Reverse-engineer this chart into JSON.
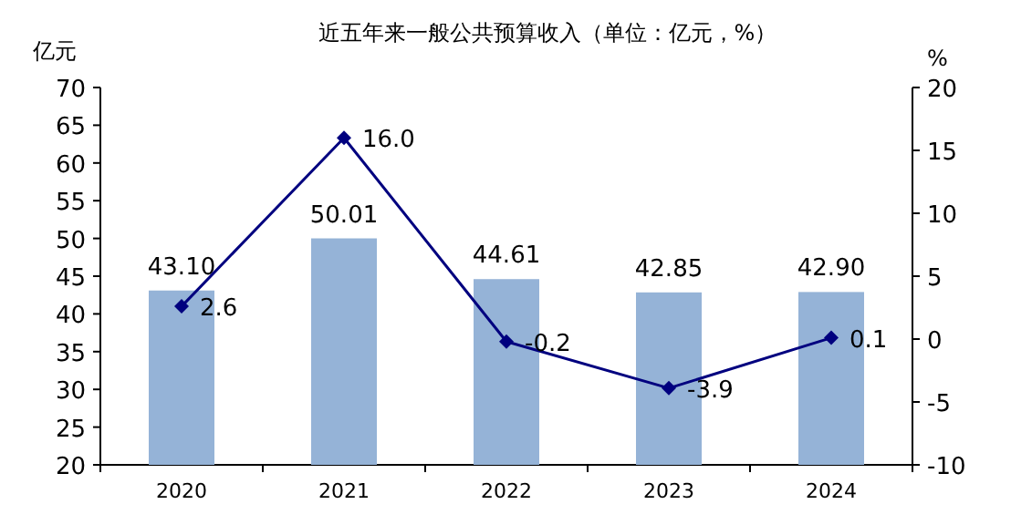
{
  "chart_data": {
    "type": "bar",
    "title": "近五年来一般公共预算收入（单位：亿元，%）",
    "ylabel": "亿元",
    "y2label": "%",
    "categories": [
      "2020",
      "2021",
      "2022",
      "2023",
      "2024"
    ],
    "series": [
      {
        "color": "#95b3d7",
        "values": [
          43.1,
          50.01,
          44.61,
          42.85,
          42.9
        ],
        "value_labels": [
          "43.10",
          "50.01",
          "44.61",
          "42.85",
          "42.90"
        ]
      },
      {
        "type": "line",
        "axis": "y2",
        "color": "#00007f",
        "marker": "diamond",
        "values": [
          2.6,
          16.0,
          -0.2,
          -3.9,
          0.1
        ],
        "value_labels": [
          "2.6",
          "16.0",
          "-0.2",
          "-3.9",
          "0.1"
        ]
      }
    ],
    "ylim": [
      20,
      70
    ],
    "yticks": [
      20,
      25,
      30,
      35,
      40,
      45,
      50,
      55,
      60,
      65,
      70
    ],
    "y2lim": [
      -10,
      20
    ],
    "y2ticks": [
      -10,
      -5,
      0,
      5,
      10,
      15,
      20
    ],
    "grid": false
  }
}
